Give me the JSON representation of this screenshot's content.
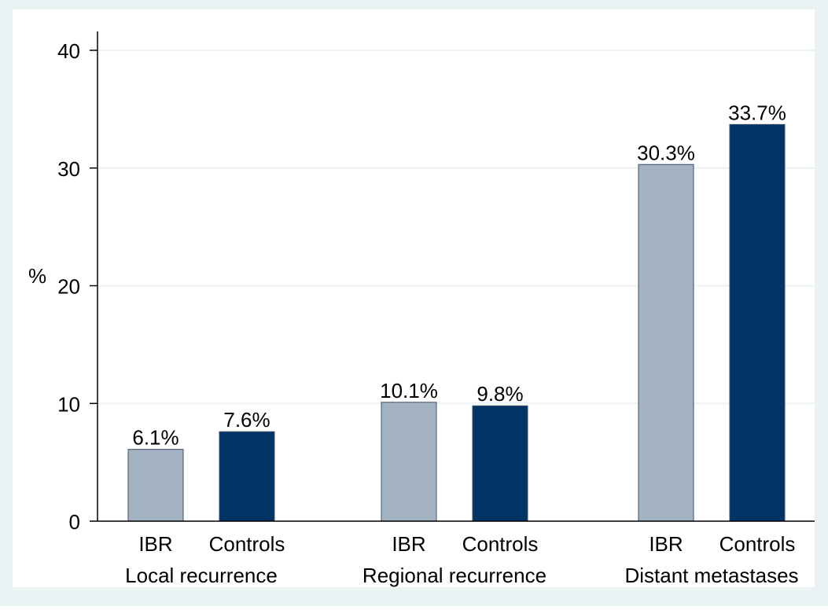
{
  "colors": {
    "outer_background": "#eaf2f3",
    "plot_background": "#ffffff",
    "grid": "#eaf2f3",
    "axis": "#000000",
    "ibr": "#a3b3c2",
    "controls": "#003366",
    "text": "#000000"
  },
  "chart_data": {
    "type": "bar",
    "ylabel": "%",
    "ylim": [
      0,
      40
    ],
    "yticks": [
      0,
      10,
      20,
      30,
      40
    ],
    "grid": true,
    "groups": [
      {
        "label": "Local recurrence",
        "bars": [
          {
            "category": "IBR",
            "value": 6.1,
            "value_label": "6.1%"
          },
          {
            "category": "Controls",
            "value": 7.6,
            "value_label": "7.6%"
          }
        ]
      },
      {
        "label": "Regional recurrence",
        "bars": [
          {
            "category": "IBR",
            "value": 10.1,
            "value_label": "10.1%"
          },
          {
            "category": "Controls",
            "value": 9.8,
            "value_label": "9.8%"
          }
        ]
      },
      {
        "label": "Distant metastases",
        "bars": [
          {
            "category": "IBR",
            "value": 30.3,
            "value_label": "30.3%"
          },
          {
            "category": "Controls",
            "value": 33.7,
            "value_label": "33.7%"
          }
        ]
      }
    ]
  }
}
